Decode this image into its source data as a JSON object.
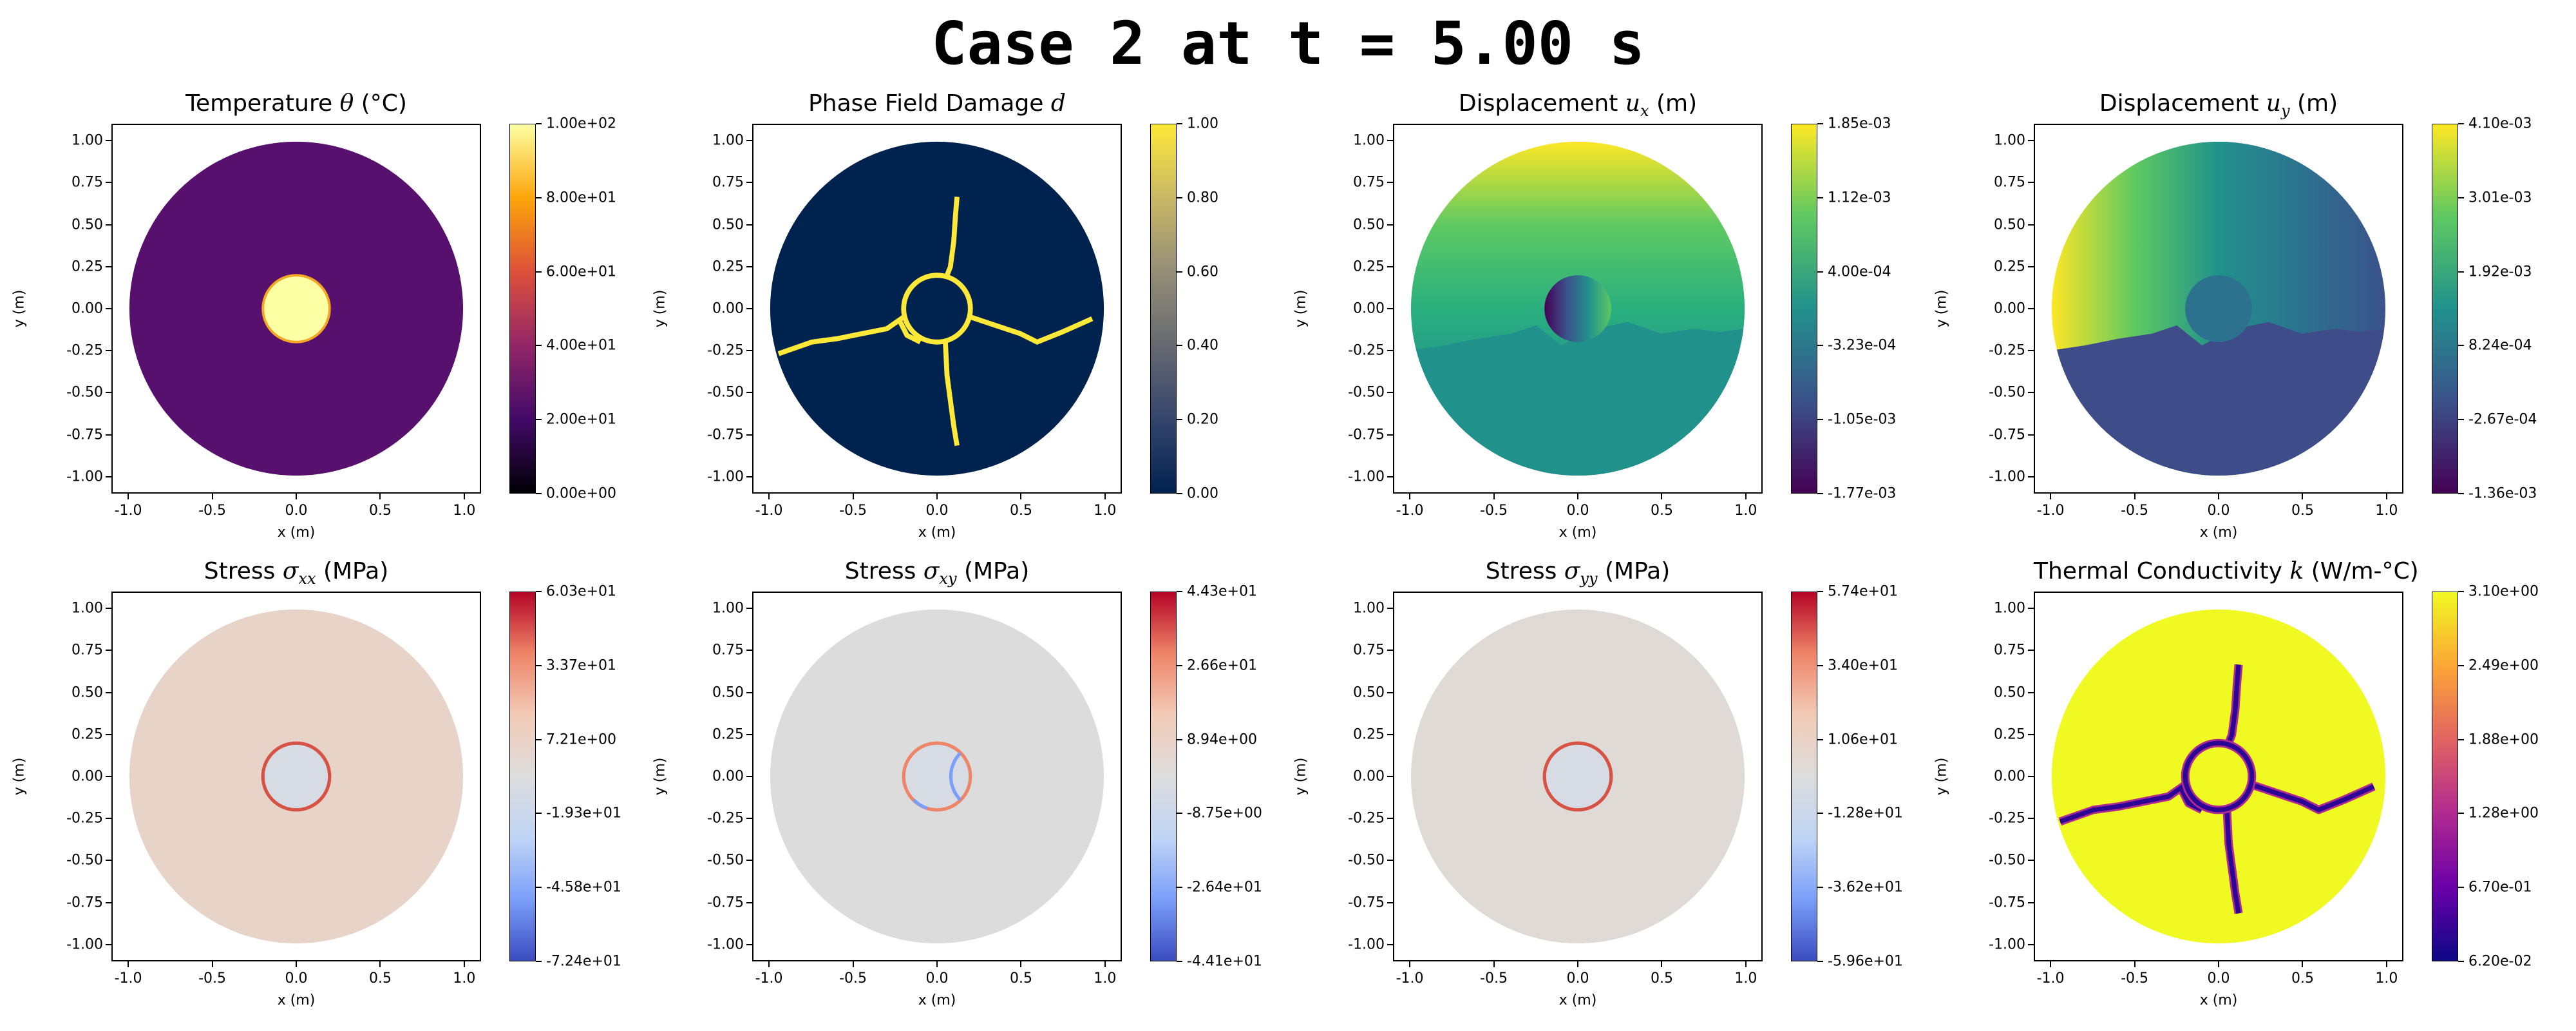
{
  "suptitle": "Case 2 at t = 5.00 s",
  "chart_data": {
    "type": "heatmap",
    "title": "Case 2 at t = 5.00 s",
    "xlabel": "x (m)",
    "ylabel": "y (m)",
    "xlim": [
      -1.1,
      1.1
    ],
    "ylim": [
      -1.1,
      1.1
    ],
    "xticks": [
      "-1.0",
      "-0.5",
      "0.0",
      "0.5",
      "1.0"
    ],
    "yticks": [
      "1.00",
      "0.75",
      "0.50",
      "0.25",
      "0.00",
      "-0.25",
      "-0.50",
      "-0.75",
      "-1.00"
    ],
    "panels": [
      {
        "field": "temperature",
        "title": {
          "pre": "Temperature ",
          "sym": "θ",
          "sub": "",
          "post": " (°C)"
        },
        "cmap": "inferno",
        "stops": [
          "#000004",
          "#420a68",
          "#932667",
          "#dd513a",
          "#fca50a",
          "#fcffa4"
        ],
        "cbar_ticks": [
          "1.00e+02",
          "8.00e+01",
          "6.00e+01",
          "4.00e+01",
          "2.00e+01",
          "0.00e+00"
        ],
        "range": [
          0,
          100
        ]
      },
      {
        "field": "damage",
        "title": {
          "pre": "Phase Field Damage ",
          "sym": "d",
          "sub": "",
          "post": ""
        },
        "cmap": "cividis",
        "stops": [
          "#00224e",
          "#35456c",
          "#666970",
          "#948e77",
          "#c8b866",
          "#fee838"
        ],
        "cbar_ticks": [
          "1.00",
          "0.80",
          "0.60",
          "0.40",
          "0.20",
          "0.00"
        ],
        "range": [
          0,
          1
        ]
      },
      {
        "field": "ux",
        "title": {
          "pre": "Displacement ",
          "sym": "u",
          "sub": "x",
          "post": " (m)"
        },
        "cmap": "viridis",
        "stops": [
          "#440154",
          "#3b528b",
          "#21918c",
          "#5ec962",
          "#fde725"
        ],
        "cbar_ticks": [
          "1.85e-03",
          "1.12e-03",
          "4.00e-04",
          "-3.23e-04",
          "-1.05e-03",
          "-1.77e-03"
        ],
        "range": [
          -0.00177,
          0.00185
        ]
      },
      {
        "field": "uy",
        "title": {
          "pre": "Displacement ",
          "sym": "u",
          "sub": "y",
          "post": " (m)"
        },
        "cmap": "viridis",
        "stops": [
          "#440154",
          "#3b528b",
          "#21918c",
          "#5ec962",
          "#fde725"
        ],
        "cbar_ticks": [
          "4.10e-03",
          "3.01e-03",
          "1.92e-03",
          "8.24e-04",
          "-2.67e-04",
          "-1.36e-03"
        ],
        "range": [
          -0.00136,
          0.0041
        ]
      },
      {
        "field": "sxx",
        "title": {
          "pre": "Stress ",
          "sym": "σ",
          "sub": "xx",
          "post": " (MPa)"
        },
        "cmap": "coolwarm",
        "stops": [
          "#3b4cc0",
          "#7b9ff9",
          "#c0d4f5",
          "#dddddd",
          "#f2cbb7",
          "#ee8468",
          "#b40426"
        ],
        "cbar_ticks": [
          "6.03e+01",
          "3.37e+01",
          "7.21e+00",
          "-1.93e+01",
          "-4.58e+01",
          "-7.24e+01"
        ],
        "range": [
          -72.4,
          60.3
        ]
      },
      {
        "field": "sxy",
        "title": {
          "pre": "Stress ",
          "sym": "σ",
          "sub": "xy",
          "post": " (MPa)"
        },
        "cmap": "coolwarm",
        "stops": [
          "#3b4cc0",
          "#7b9ff9",
          "#c0d4f5",
          "#dddddd",
          "#f2cbb7",
          "#ee8468",
          "#b40426"
        ],
        "cbar_ticks": [
          "4.43e+01",
          "2.66e+01",
          "8.94e+00",
          "-8.75e+00",
          "-2.64e+01",
          "-4.41e+01"
        ],
        "range": [
          -44.1,
          44.3
        ]
      },
      {
        "field": "syy",
        "title": {
          "pre": "Stress ",
          "sym": "σ",
          "sub": "yy",
          "post": " (MPa)"
        },
        "cmap": "coolwarm",
        "stops": [
          "#3b4cc0",
          "#7b9ff9",
          "#c0d4f5",
          "#dddddd",
          "#f2cbb7",
          "#ee8468",
          "#b40426"
        ],
        "cbar_ticks": [
          "5.74e+01",
          "3.40e+01",
          "1.06e+01",
          "-1.28e+01",
          "-3.62e+01",
          "-5.96e+01"
        ],
        "range": [
          -59.6,
          57.4
        ]
      },
      {
        "field": "k",
        "title": {
          "pre": "Thermal Conductivity ",
          "sym": "k",
          "sub": "",
          "post": " (W/m-°C)"
        },
        "cmap": "plasma",
        "stops": [
          "#0d0887",
          "#6a00a8",
          "#b12a90",
          "#e16462",
          "#fca636",
          "#f0f921"
        ],
        "cbar_ticks": [
          "3.10e+00",
          "2.49e+00",
          "1.88e+00",
          "1.28e+00",
          "6.70e-01",
          "6.20e-02"
        ],
        "range": [
          0.062,
          3.1
        ]
      }
    ]
  }
}
